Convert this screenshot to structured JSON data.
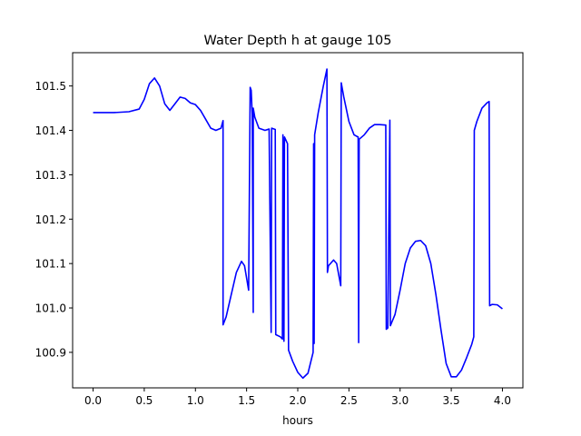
{
  "chart_data": {
    "type": "line",
    "title": "Water Depth h at gauge 105",
    "xlabel": "hours",
    "ylabel": "",
    "xlim": [
      -0.2,
      4.2
    ],
    "ylim": [
      100.82,
      101.575
    ],
    "xticks": [
      0.0,
      0.5,
      1.0,
      1.5,
      2.0,
      2.5,
      3.0,
      3.5,
      4.0
    ],
    "xtick_labels": [
      "0.0",
      "0.5",
      "1.0",
      "1.5",
      "2.0",
      "2.5",
      "3.0",
      "3.5",
      "4.0"
    ],
    "yticks": [
      100.9,
      101.0,
      101.1,
      101.2,
      101.3,
      101.4,
      101.5
    ],
    "ytick_labels": [
      "100.9",
      "101.0",
      "101.1",
      "101.2",
      "101.3",
      "101.4",
      "101.5"
    ],
    "grid": false,
    "series": [
      {
        "name": "",
        "color": "#0000ff",
        "points": [
          [
            0.0,
            101.44
          ],
          [
            0.2,
            101.44
          ],
          [
            0.35,
            101.442
          ],
          [
            0.45,
            101.448
          ],
          [
            0.5,
            101.47
          ],
          [
            0.55,
            101.505
          ],
          [
            0.6,
            101.518
          ],
          [
            0.65,
            101.5
          ],
          [
            0.7,
            101.46
          ],
          [
            0.75,
            101.445
          ],
          [
            0.8,
            101.46
          ],
          [
            0.85,
            101.475
          ],
          [
            0.9,
            101.472
          ],
          [
            0.95,
            101.462
          ],
          [
            1.0,
            101.458
          ],
          [
            1.05,
            101.445
          ],
          [
            1.1,
            101.425
          ],
          [
            1.15,
            101.405
          ],
          [
            1.2,
            101.4
          ],
          [
            1.25,
            101.405
          ],
          [
            1.27,
            101.422
          ],
          [
            1.27,
            100.962
          ],
          [
            1.3,
            100.98
          ],
          [
            1.35,
            101.03
          ],
          [
            1.4,
            101.08
          ],
          [
            1.45,
            101.105
          ],
          [
            1.48,
            101.095
          ],
          [
            1.52,
            101.04
          ],
          [
            1.535,
            101.497
          ],
          [
            1.545,
            101.49
          ],
          [
            1.555,
            101.435
          ],
          [
            1.565,
            100.99
          ],
          [
            1.565,
            101.45
          ],
          [
            1.58,
            101.43
          ],
          [
            1.62,
            101.405
          ],
          [
            1.68,
            101.4
          ],
          [
            1.72,
            101.403
          ],
          [
            1.74,
            100.945
          ],
          [
            1.745,
            101.405
          ],
          [
            1.78,
            101.402
          ],
          [
            1.785,
            100.94
          ],
          [
            1.83,
            100.935
          ],
          [
            1.85,
            100.93
          ],
          [
            1.855,
            101.39
          ],
          [
            1.865,
            100.925
          ],
          [
            1.87,
            101.385
          ],
          [
            1.9,
            101.37
          ],
          [
            1.91,
            100.905
          ],
          [
            1.95,
            100.88
          ],
          [
            2.0,
            100.855
          ],
          [
            2.05,
            100.842
          ],
          [
            2.1,
            100.853
          ],
          [
            2.15,
            100.9
          ],
          [
            2.155,
            101.37
          ],
          [
            2.16,
            100.92
          ],
          [
            2.165,
            101.39
          ],
          [
            2.2,
            101.44
          ],
          [
            2.25,
            101.5
          ],
          [
            2.285,
            101.538
          ],
          [
            2.29,
            101.08
          ],
          [
            2.3,
            101.095
          ],
          [
            2.35,
            101.108
          ],
          [
            2.38,
            101.1
          ],
          [
            2.42,
            101.05
          ],
          [
            2.425,
            101.507
          ],
          [
            2.45,
            101.475
          ],
          [
            2.5,
            101.42
          ],
          [
            2.55,
            101.39
          ],
          [
            2.59,
            101.385
          ],
          [
            2.595,
            100.922
          ],
          [
            2.6,
            101.38
          ],
          [
            2.65,
            101.39
          ],
          [
            2.7,
            101.405
          ],
          [
            2.75,
            101.413
          ],
          [
            2.8,
            101.413
          ],
          [
            2.86,
            101.412
          ],
          [
            2.865,
            100.952
          ],
          [
            2.88,
            100.955
          ],
          [
            2.9,
            101.423
          ],
          [
            2.905,
            100.96
          ],
          [
            2.95,
            100.985
          ],
          [
            3.0,
            101.04
          ],
          [
            3.05,
            101.1
          ],
          [
            3.1,
            101.135
          ],
          [
            3.15,
            101.15
          ],
          [
            3.2,
            101.152
          ],
          [
            3.25,
            101.14
          ],
          [
            3.3,
            101.1
          ],
          [
            3.35,
            101.03
          ],
          [
            3.4,
            100.95
          ],
          [
            3.45,
            100.875
          ],
          [
            3.5,
            100.845
          ],
          [
            3.55,
            100.845
          ],
          [
            3.6,
            100.86
          ],
          [
            3.65,
            100.888
          ],
          [
            3.7,
            100.918
          ],
          [
            3.72,
            100.935
          ],
          [
            3.725,
            101.4
          ],
          [
            3.75,
            101.42
          ],
          [
            3.8,
            101.45
          ],
          [
            3.85,
            101.462
          ],
          [
            3.87,
            101.465
          ],
          [
            3.875,
            101.005
          ],
          [
            3.9,
            101.008
          ],
          [
            3.95,
            101.007
          ],
          [
            4.0,
            100.998
          ]
        ]
      }
    ]
  }
}
